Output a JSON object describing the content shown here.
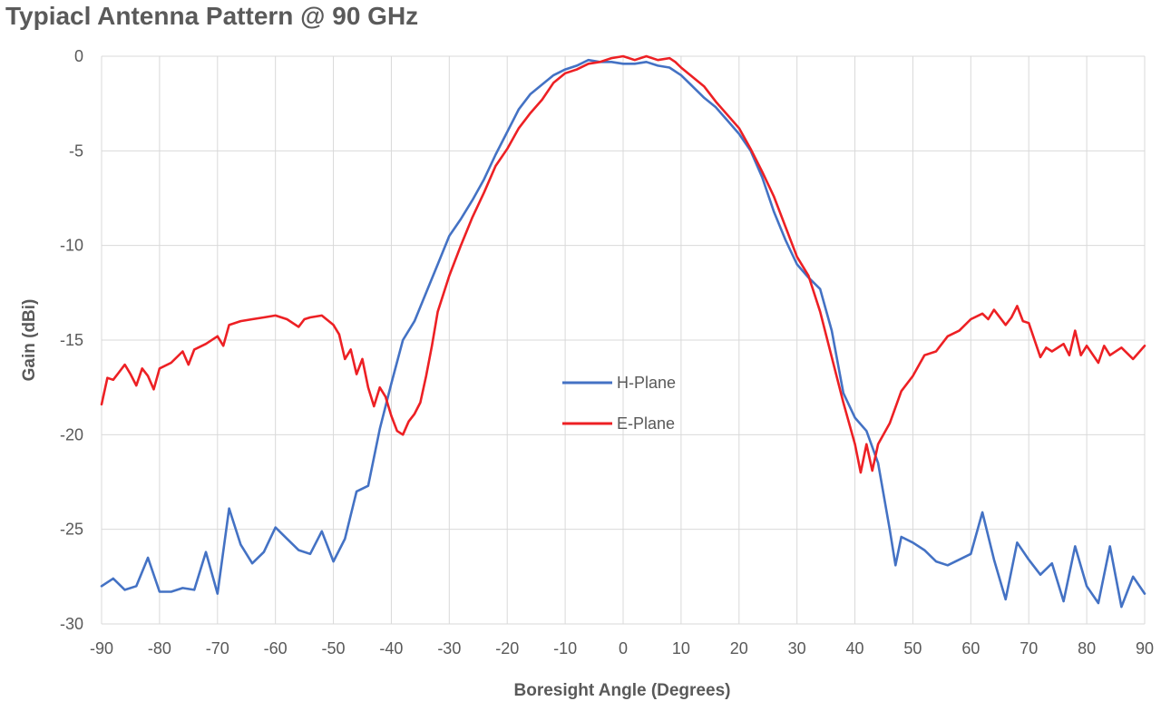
{
  "chart_data": {
    "type": "line",
    "title": "Typiacl Antenna Pattern @ 90 GHz",
    "xlabel": "Boresight Angle (Degrees)",
    "ylabel": "Gain (dBi)",
    "xlim": [
      -90,
      90
    ],
    "ylim": [
      -30,
      0
    ],
    "xticks": [
      -90,
      -80,
      -70,
      -60,
      -50,
      -40,
      -30,
      -20,
      -10,
      0,
      10,
      20,
      30,
      40,
      50,
      60,
      70,
      80,
      90
    ],
    "yticks": [
      0,
      -5,
      -10,
      -15,
      -20,
      -25,
      -30
    ],
    "grid": true,
    "legend_position": "center",
    "series": [
      {
        "name": "H-Plane",
        "color": "#4472c4",
        "points": [
          [
            -90,
            -28.0
          ],
          [
            -88,
            -27.6
          ],
          [
            -86,
            -28.2
          ],
          [
            -84,
            -28.0
          ],
          [
            -82,
            -26.5
          ],
          [
            -80,
            -28.3
          ],
          [
            -78,
            -28.3
          ],
          [
            -76,
            -28.1
          ],
          [
            -74,
            -28.2
          ],
          [
            -72,
            -26.2
          ],
          [
            -70,
            -28.4
          ],
          [
            -68,
            -23.9
          ],
          [
            -66,
            -25.8
          ],
          [
            -64,
            -26.8
          ],
          [
            -62,
            -26.2
          ],
          [
            -60,
            -24.9
          ],
          [
            -58,
            -25.5
          ],
          [
            -56,
            -26.1
          ],
          [
            -54,
            -26.3
          ],
          [
            -52,
            -25.1
          ],
          [
            -50,
            -26.7
          ],
          [
            -48,
            -25.5
          ],
          [
            -46,
            -23.0
          ],
          [
            -44,
            -22.7
          ],
          [
            -42,
            -19.7
          ],
          [
            -40,
            -17.3
          ],
          [
            -38,
            -15.0
          ],
          [
            -36,
            -14.0
          ],
          [
            -34,
            -12.5
          ],
          [
            -32,
            -11.0
          ],
          [
            -30,
            -9.5
          ],
          [
            -28,
            -8.6
          ],
          [
            -26,
            -7.6
          ],
          [
            -24,
            -6.5
          ],
          [
            -22,
            -5.2
          ],
          [
            -20,
            -4.0
          ],
          [
            -18,
            -2.8
          ],
          [
            -16,
            -2.0
          ],
          [
            -14,
            -1.5
          ],
          [
            -12,
            -1.0
          ],
          [
            -10,
            -0.7
          ],
          [
            -8,
            -0.5
          ],
          [
            -6,
            -0.2
          ],
          [
            -4,
            -0.3
          ],
          [
            -2,
            -0.3
          ],
          [
            0,
            -0.4
          ],
          [
            2,
            -0.4
          ],
          [
            4,
            -0.3
          ],
          [
            6,
            -0.5
          ],
          [
            8,
            -0.6
          ],
          [
            10,
            -1.0
          ],
          [
            12,
            -1.6
          ],
          [
            14,
            -2.2
          ],
          [
            16,
            -2.7
          ],
          [
            18,
            -3.4
          ],
          [
            20,
            -4.1
          ],
          [
            22,
            -5.0
          ],
          [
            24,
            -6.4
          ],
          [
            26,
            -8.2
          ],
          [
            28,
            -9.7
          ],
          [
            30,
            -11.0
          ],
          [
            32,
            -11.7
          ],
          [
            34,
            -12.3
          ],
          [
            36,
            -14.5
          ],
          [
            38,
            -17.8
          ],
          [
            40,
            -19.1
          ],
          [
            42,
            -19.8
          ],
          [
            44,
            -21.5
          ],
          [
            46,
            -25.0
          ],
          [
            47,
            -26.9
          ],
          [
            48,
            -25.4
          ],
          [
            50,
            -25.7
          ],
          [
            52,
            -26.1
          ],
          [
            54,
            -26.7
          ],
          [
            56,
            -26.9
          ],
          [
            58,
            -26.6
          ],
          [
            60,
            -26.3
          ],
          [
            62,
            -24.1
          ],
          [
            64,
            -26.6
          ],
          [
            66,
            -28.7
          ],
          [
            68,
            -25.7
          ],
          [
            70,
            -26.6
          ],
          [
            72,
            -27.4
          ],
          [
            74,
            -26.8
          ],
          [
            76,
            -28.8
          ],
          [
            78,
            -25.9
          ],
          [
            80,
            -28.0
          ],
          [
            82,
            -28.9
          ],
          [
            84,
            -25.9
          ],
          [
            86,
            -29.1
          ],
          [
            88,
            -27.5
          ],
          [
            90,
            -28.4
          ]
        ]
      },
      {
        "name": "E-Plane",
        "color": "#ed2024",
        "points": [
          [
            -90,
            -18.4
          ],
          [
            -89,
            -17.0
          ],
          [
            -88,
            -17.1
          ],
          [
            -87,
            -16.7
          ],
          [
            -86,
            -16.3
          ],
          [
            -85,
            -16.8
          ],
          [
            -84,
            -17.4
          ],
          [
            -83,
            -16.5
          ],
          [
            -82,
            -16.9
          ],
          [
            -81,
            -17.6
          ],
          [
            -80,
            -16.5
          ],
          [
            -78,
            -16.2
          ],
          [
            -76,
            -15.6
          ],
          [
            -75,
            -16.3
          ],
          [
            -74,
            -15.5
          ],
          [
            -72,
            -15.2
          ],
          [
            -70,
            -14.8
          ],
          [
            -69,
            -15.3
          ],
          [
            -68,
            -14.2
          ],
          [
            -66,
            -14.0
          ],
          [
            -64,
            -13.9
          ],
          [
            -62,
            -13.8
          ],
          [
            -60,
            -13.7
          ],
          [
            -58,
            -13.9
          ],
          [
            -56,
            -14.3
          ],
          [
            -55,
            -13.9
          ],
          [
            -54,
            -13.8
          ],
          [
            -52,
            -13.7
          ],
          [
            -50,
            -14.2
          ],
          [
            -49,
            -14.7
          ],
          [
            -48,
            -16.0
          ],
          [
            -47,
            -15.5
          ],
          [
            -46,
            -16.8
          ],
          [
            -45,
            -16.0
          ],
          [
            -44,
            -17.5
          ],
          [
            -43,
            -18.5
          ],
          [
            -42,
            -17.5
          ],
          [
            -41,
            -18.0
          ],
          [
            -40,
            -19.0
          ],
          [
            -39,
            -19.8
          ],
          [
            -38,
            -20.0
          ],
          [
            -37,
            -19.3
          ],
          [
            -36,
            -18.9
          ],
          [
            -35,
            -18.3
          ],
          [
            -34,
            -16.9
          ],
          [
            -33,
            -15.3
          ],
          [
            -32,
            -13.5
          ],
          [
            -30,
            -11.6
          ],
          [
            -28,
            -10.0
          ],
          [
            -26,
            -8.5
          ],
          [
            -24,
            -7.2
          ],
          [
            -22,
            -5.8
          ],
          [
            -20,
            -4.9
          ],
          [
            -18,
            -3.8
          ],
          [
            -16,
            -3.0
          ],
          [
            -14,
            -2.3
          ],
          [
            -12,
            -1.4
          ],
          [
            -10,
            -0.9
          ],
          [
            -8,
            -0.7
          ],
          [
            -6,
            -0.4
          ],
          [
            -4,
            -0.3
          ],
          [
            -2,
            -0.1
          ],
          [
            0,
            0.0
          ],
          [
            2,
            -0.2
          ],
          [
            4,
            0.0
          ],
          [
            6,
            -0.2
          ],
          [
            8,
            -0.1
          ],
          [
            9,
            -0.3
          ],
          [
            10,
            -0.6
          ],
          [
            12,
            -1.1
          ],
          [
            14,
            -1.6
          ],
          [
            16,
            -2.4
          ],
          [
            18,
            -3.1
          ],
          [
            20,
            -3.8
          ],
          [
            22,
            -4.9
          ],
          [
            24,
            -6.1
          ],
          [
            26,
            -7.4
          ],
          [
            28,
            -9.0
          ],
          [
            30,
            -10.6
          ],
          [
            32,
            -11.6
          ],
          [
            34,
            -13.5
          ],
          [
            36,
            -15.9
          ],
          [
            38,
            -18.3
          ],
          [
            40,
            -20.5
          ],
          [
            41,
            -22.0
          ],
          [
            42,
            -20.5
          ],
          [
            43,
            -21.9
          ],
          [
            44,
            -20.5
          ],
          [
            46,
            -19.4
          ],
          [
            48,
            -17.7
          ],
          [
            50,
            -16.9
          ],
          [
            52,
            -15.8
          ],
          [
            54,
            -15.6
          ],
          [
            56,
            -14.8
          ],
          [
            58,
            -14.5
          ],
          [
            60,
            -13.9
          ],
          [
            62,
            -13.6
          ],
          [
            63,
            -13.9
          ],
          [
            64,
            -13.4
          ],
          [
            66,
            -14.2
          ],
          [
            67,
            -13.8
          ],
          [
            68,
            -13.2
          ],
          [
            69,
            -14.0
          ],
          [
            70,
            -14.1
          ],
          [
            72,
            -15.9
          ],
          [
            73,
            -15.4
          ],
          [
            74,
            -15.6
          ],
          [
            76,
            -15.2
          ],
          [
            77,
            -15.8
          ],
          [
            78,
            -14.5
          ],
          [
            79,
            -15.8
          ],
          [
            80,
            -15.3
          ],
          [
            82,
            -16.2
          ],
          [
            83,
            -15.3
          ],
          [
            84,
            -15.8
          ],
          [
            86,
            -15.4
          ],
          [
            88,
            -16.0
          ],
          [
            90,
            -15.3
          ]
        ]
      }
    ]
  }
}
